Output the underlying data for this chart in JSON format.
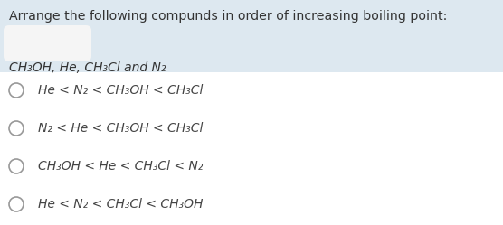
{
  "title": "Arrange the following compunds in order of increasing boiling point:",
  "subtitle": "CH₃OH, He, CH₃Cl and N₂",
  "options": [
    "He < N₂ < CH₃OH < CH₃Cl",
    "N₂ < He < CH₃OH < CH₃Cl",
    "CH₃OH < He < CH₃Cl < N₂",
    "He < N₂ < CH₃Cl < CH₃OH"
  ],
  "header_bg": "#dde8f0",
  "white_bg": "#ffffff",
  "title_color": "#333333",
  "option_color": "#444444",
  "subtitle_color": "#333333",
  "cloud_color": "#f5f5f5",
  "radio_color": "#999999",
  "fig_width": 5.56,
  "fig_height": 2.49,
  "dpi": 100
}
